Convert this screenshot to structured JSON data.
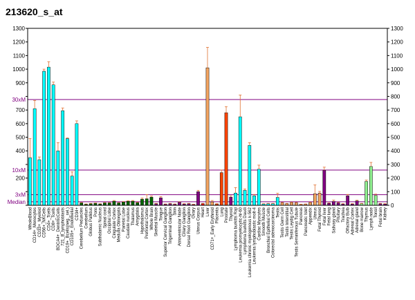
{
  "chart_data": {
    "type": "bar",
    "title": "213620_s_at",
    "ylim": [
      0,
      1300
    ],
    "yticks": [
      0,
      100,
      200,
      300,
      400,
      500,
      600,
      700,
      800,
      900,
      1000,
      1100,
      1200,
      1300
    ],
    "left_tick_labels": [
      "",
      "",
      "200",
      "",
      "400",
      "500",
      "600",
      "700",
      "",
      "900",
      "1000",
      "1100",
      "1200",
      "1300"
    ],
    "right_tick_labels": [
      "0",
      "100",
      "200",
      "300",
      "400",
      "500",
      "600",
      "700",
      "800",
      "900",
      "1000",
      "1100",
      "1200",
      "1300"
    ],
    "reference_lines": [
      {
        "label": "30xM",
        "value": 777,
        "color": "#800080"
      },
      {
        "label": "10xM",
        "value": 259,
        "color": "#800080"
      },
      {
        "label": "3xM",
        "value": 78,
        "color": "#800080"
      },
      {
        "label": "Median",
        "value": 26,
        "color": "#800080"
      }
    ],
    "categories": [
      "WholeBlood",
      "CD14+_Monocytes",
      "CD33+_Myeloid",
      "CD56+_NKCells",
      "CD4+_Tcells",
      "CD8+_Tcells",
      "BDCA4+_DentriticCells",
      "721_B_lymphoblasts",
      "CD19+_Bcells(neg._sel.)",
      "CD105+_Endothelial",
      "CD34+",
      "Cerebellum Peduncles",
      "Cerebellum",
      "Globus Pallidus",
      "Pons",
      "Subthalamic Nucleus",
      "Spinal cord",
      "Occipital Lobe",
      "Cingulate Cortex",
      "Medulla Oblongata",
      "Parietal Lobe",
      "Caudate nucleus",
      "Thalamus",
      "Amygdala",
      "Hypothalamus",
      "Prefrontal Cortex",
      "Whole Brain",
      "Skeletal Muscle",
      "Tongue",
      "Superior Cervical Ganglion",
      "Trigeminal Ganglion",
      "Skin",
      "Atrioventricular Node",
      "Ciliary Ganglion",
      "Dorsal Root Ganglion",
      "Ovary",
      "Uterus Corpus",
      "Heart",
      "Liver",
      "CD71+_Early Erythroid",
      "Placenta",
      "Lung",
      "Prostate",
      "Thyroid",
      "Lymphoma burkitts Raji",
      "Leukemia promyelocytic-hl-60",
      "Lymphoma burkitts Daudi",
      "Leukemia chronic myelogenous k-562",
      "Leukemia lymphoblastic molt-4",
      "Cardiac Myocytes",
      "Smooth Muscle",
      "Bronchial Epithelial Cells",
      "Colorectal adenocarcinoma",
      "Testis",
      "Testis Germ Cell",
      "Testis Interstitial",
      "Testis Leydig Cell",
      "Testis Seminiferous Tubule",
      "Pancreas",
      "Pancreatic Islet",
      "Appendix",
      "Uterus",
      "Fetal Thyroid",
      "Fetal liver",
      "Fetal lung",
      "Salivary gland",
      "Pituitary",
      "Trachea",
      "Olfactory Bulb",
      "Adrenal Cortex",
      "Adrenal gland",
      "Bone marrow",
      "Thymus",
      "Lymph node",
      "Tonsil",
      "Fetal brain",
      "Kidney"
    ],
    "category_labels": [
      "WholeBlood",
      "CD14+_Monocytes",
      "CD33+_Myeloid",
      "CD56+_NKCells",
      "CD4+_Tcells",
      "CD8+_Tcells",
      "BDCA4+_DentriticCells",
      "721_B_lymphoblasts",
      "CD19+_Bcells(neg._sel.)",
      "CD105+_Endothelial",
      "CD34+",
      "Cerebellum Peduncles",
      "Cerebellum",
      "Globus Pallidus",
      "Pons",
      "Subthalamic Nucleus",
      "Spinal cord",
      "Occipital Lobe",
      "Cingulate Cortex",
      "Medulla Oblongata",
      "Parietal Lobe",
      "Caudate nucleus",
      "Thalamus",
      "Amygdala",
      "Hypothalamus",
      "Prefrontal Cortex",
      "Whole Brain",
      "Skeletal Muscle",
      "Tongue",
      "Superior Cervical Ganglion",
      "Trigeminal Ganglion",
      "Skin",
      "Atrioventricular Node",
      "Ciliary Ganglion",
      "Dorsal Root Ganglion",
      "Ovary",
      "Uterus Corpus",
      "Heart",
      "Liver",
      "CD71+_Early Erythroid",
      "Placenta",
      "Lung",
      "Prostate",
      "Thyroid",
      "Lymphoma burkitts Raji",
      "Leukemia promyelocytic-hl-60",
      "Lymphoma burkitts Daudi",
      "Leukemia chronic myelogenous k-562",
      "Leukemia lymphoblastic molt-4",
      "Cardiac Myocytes",
      "Smooth Muscle",
      "Bronchial Epithelial Cells",
      "Colorectal adenocarcinoma",
      "Testis",
      "Testis Germ Cell",
      "Testis Interstitial",
      "Testis Leydig Cell",
      "Testis Seminiferous Tubule",
      "Pancreas",
      "Pancreatic Islet",
      "Appendix",
      "Uterus",
      "Fetal Thyroid",
      "Fetal liver",
      "Fetal lung",
      "Salivary gland",
      "Pituitary",
      "Trachea",
      "Olfactory Bulb",
      "Adrenal Cortex",
      "Adrenal gland",
      "Bone marrow",
      "Thymus",
      "Lymph node",
      "Tonsil",
      "Fetal brain",
      "Kidney"
    ],
    "values": [
      350,
      710,
      335,
      985,
      1015,
      885,
      400,
      695,
      490,
      215,
      600,
      18,
      8,
      12,
      15,
      10,
      18,
      18,
      30,
      18,
      24,
      30,
      30,
      20,
      45,
      48,
      60,
      12,
      55,
      8,
      12,
      8,
      22,
      10,
      12,
      6,
      100,
      12,
      1010,
      25,
      10,
      240,
      680,
      60,
      90,
      650,
      110,
      440,
      70,
      265,
      10,
      12,
      12,
      58,
      18,
      12,
      20,
      18,
      6,
      8,
      20,
      85,
      90,
      255,
      15,
      28,
      18,
      10,
      70,
      10,
      32,
      12,
      175,
      285,
      72,
      12,
      10
    ],
    "errors": [
      140,
      60,
      20,
      15,
      40,
      20,
      60,
      20,
      5,
      30,
      20,
      2,
      2,
      2,
      2,
      2,
      2,
      2,
      5,
      2,
      3,
      3,
      5,
      3,
      8,
      30,
      8,
      2,
      8,
      2,
      2,
      2,
      3,
      2,
      2,
      2,
      10,
      2,
      150,
      10,
      2,
      20,
      45,
      10,
      40,
      160,
      10,
      20,
      10,
      30,
      2,
      2,
      2,
      30,
      3,
      2,
      3,
      3,
      2,
      2,
      3,
      65,
      12,
      25,
      3,
      10,
      3,
      2,
      10,
      2,
      5,
      2,
      10,
      30,
      10,
      2,
      2
    ],
    "colors": [
      "#00ffff",
      "#00ffff",
      "#00ffff",
      "#00ffff",
      "#00ffff",
      "#00ffff",
      "#00ffff",
      "#00ffff",
      "#00ffff",
      "#00ffff",
      "#00ffff",
      "#006400",
      "#006400",
      "#006400",
      "#006400",
      "#006400",
      "#006400",
      "#006400",
      "#006400",
      "#006400",
      "#006400",
      "#006400",
      "#006400",
      "#006400",
      "#006400",
      "#006400",
      "#006400",
      "#800080",
      "#800080",
      "#800080",
      "#800080",
      "#800080",
      "#800080",
      "#800080",
      "#800080",
      "#800080",
      "#800080",
      "#ff0000",
      "#f4a460",
      "#f4a460",
      "#ff4500",
      "#ff4500",
      "#ff4500",
      "#800080",
      "#00ffff",
      "#00ffff",
      "#00ffff",
      "#00ffff",
      "#00ffff",
      "#00ffff",
      "#00ffff",
      "#00ffff",
      "#00ffff",
      "#00ffff",
      "#f4a460",
      "#f4a460",
      "#f4a460",
      "#f4a460",
      "#f4a460",
      "#f4a460",
      "#f4a460",
      "#f4a460",
      "#f4a460",
      "#800080",
      "#800080",
      "#800080",
      "#800080",
      "#800080",
      "#800080",
      "#800080",
      "#800080",
      "#90ee90",
      "#90ee90",
      "#90ee90",
      "#90ee90",
      "#800080",
      "#800080"
    ]
  }
}
